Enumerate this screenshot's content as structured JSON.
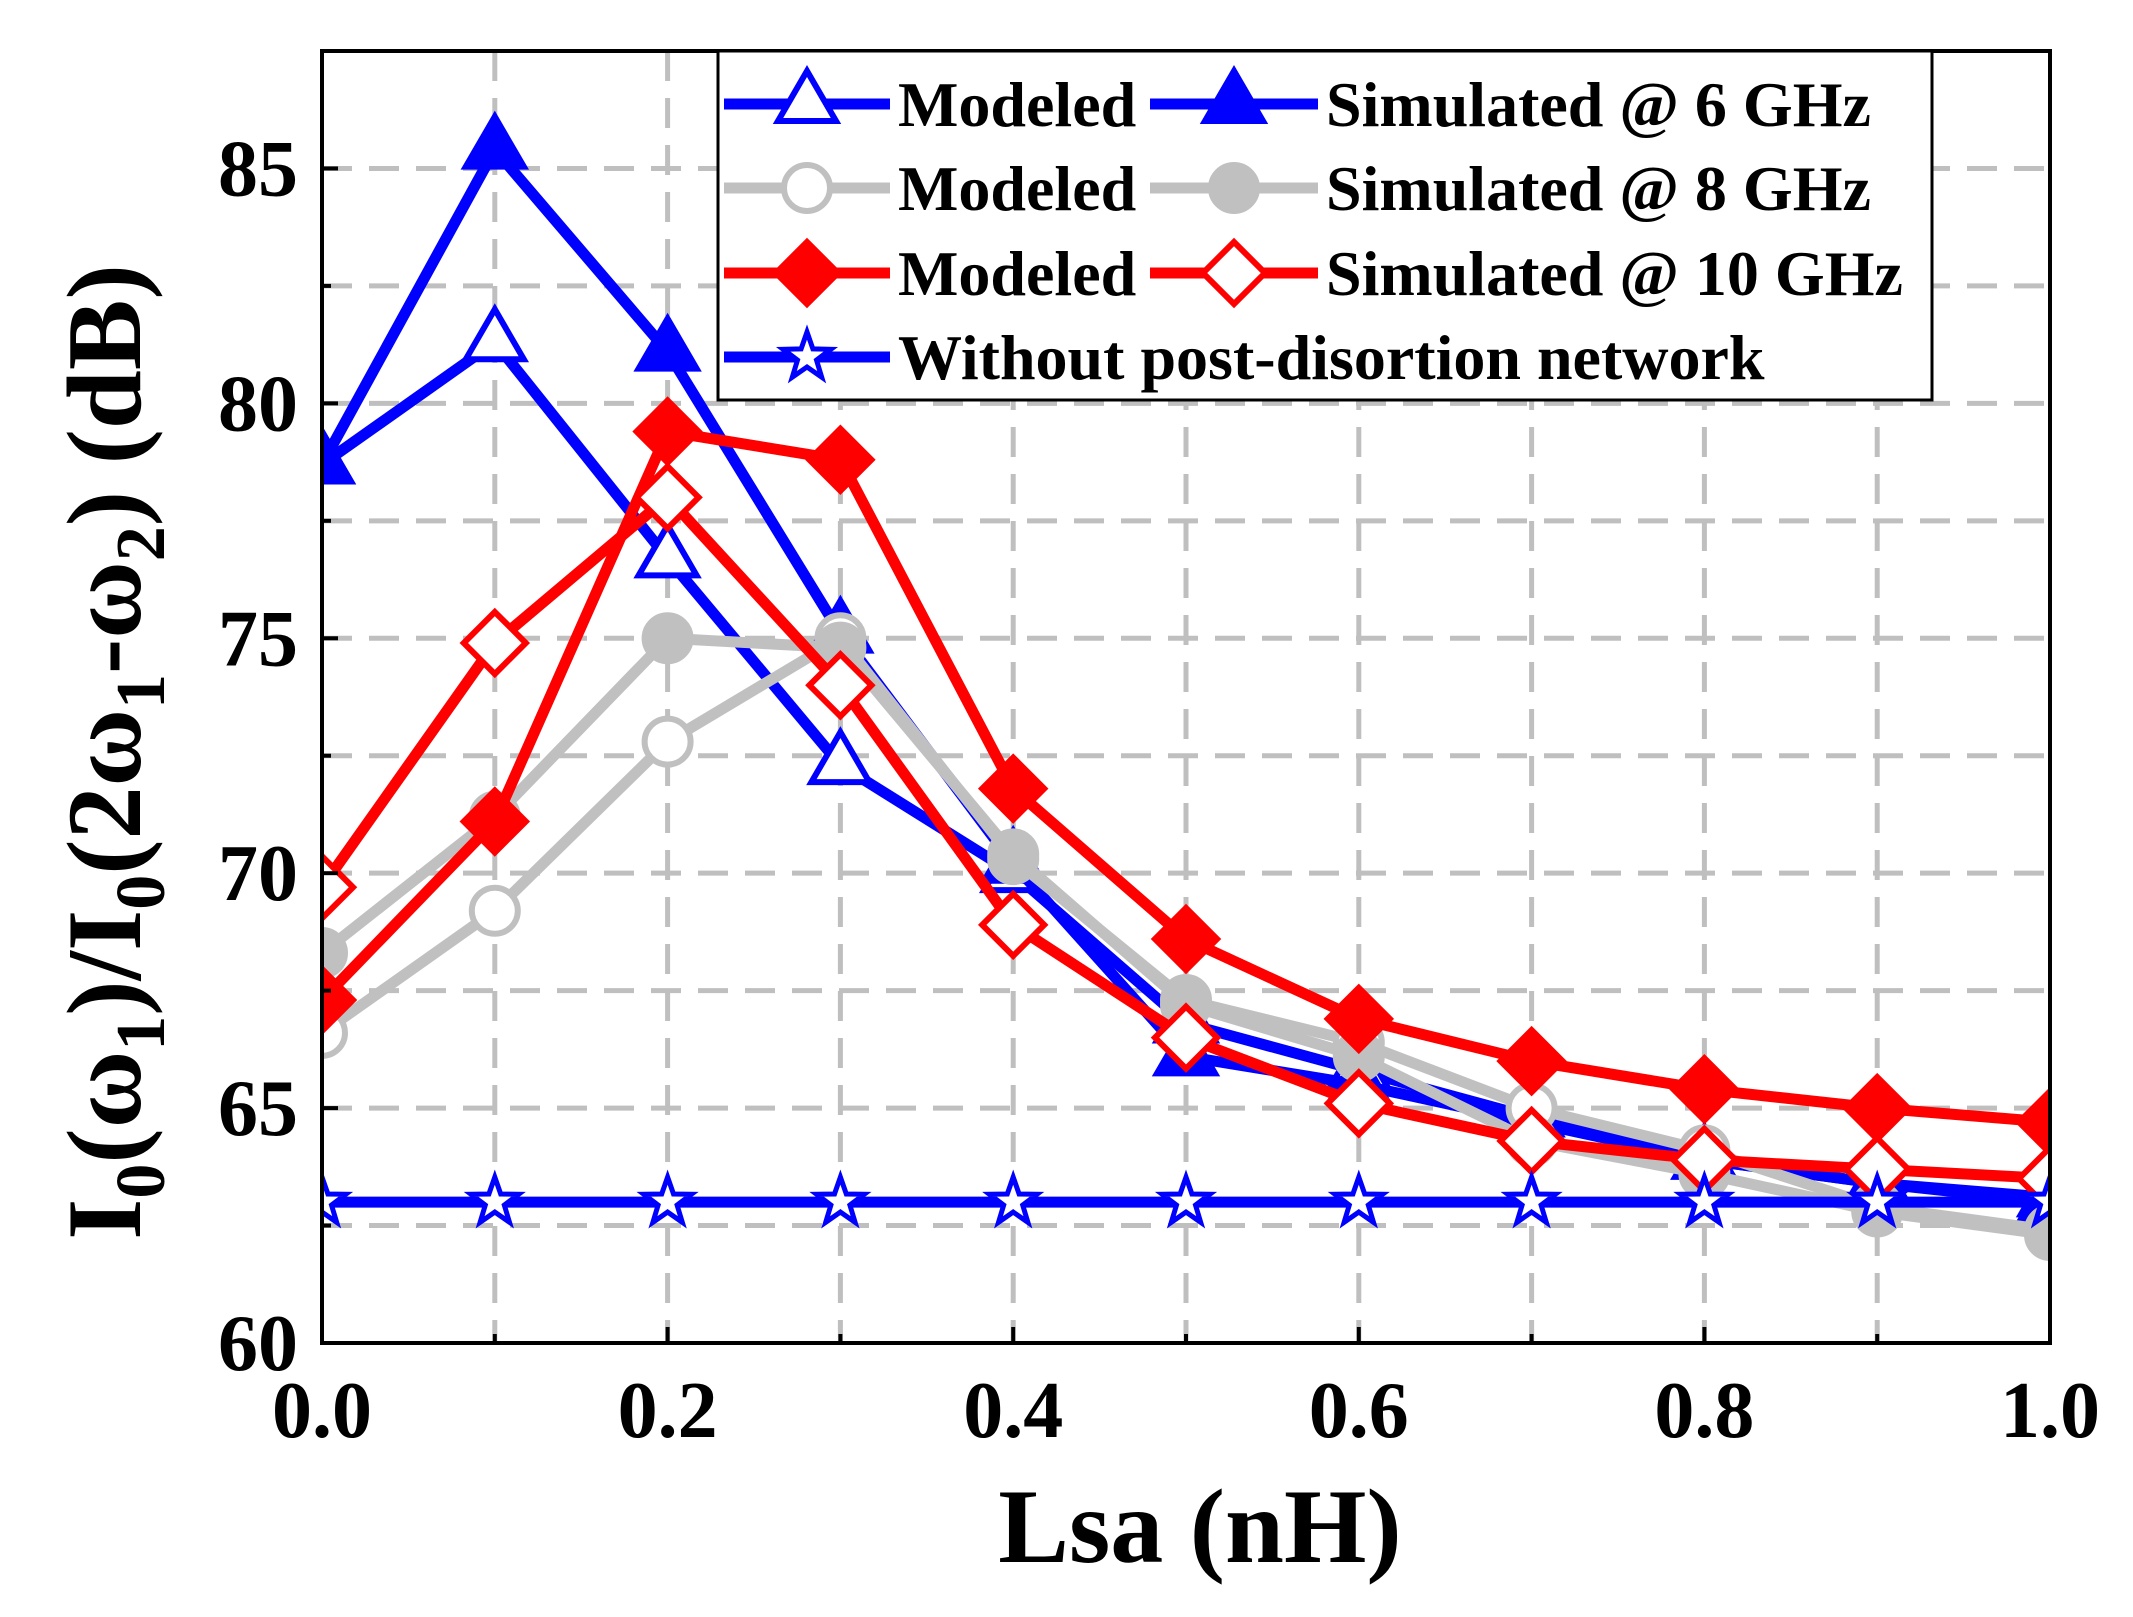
{
  "chart_data": {
    "type": "line",
    "xlabel": "Lsa (nH)",
    "ylabel": [
      "I",
      "0",
      "(ω",
      "1",
      ")/I",
      "0",
      "(2ω",
      "1",
      "-ω",
      "2",
      ") (dB)"
    ],
    "xlim": [
      0,
      1
    ],
    "ylim": [
      60,
      87.5
    ],
    "x_tick_values": [
      0,
      0.2,
      0.4,
      0.6,
      0.8,
      1.0
    ],
    "x_tick_labels": [
      "0.0",
      "0.2",
      "0.4",
      "0.6",
      "0.8",
      "1.0"
    ],
    "y_tick_values": [
      60,
      65,
      70,
      75,
      80,
      85
    ],
    "y_tick_labels": [
      "60",
      "65",
      "70",
      "75",
      "80",
      "85"
    ],
    "grid": {
      "on": true,
      "x_step": 0.1,
      "y_step": 2.5,
      "color": "#BFBFBF"
    },
    "legend_position": "top-right",
    "x": [
      0,
      0.1,
      0.2,
      0.3,
      0.4,
      0.5,
      0.6,
      0.7,
      0.8,
      0.9,
      1.0
    ],
    "series": [
      {
        "name": "Modeled",
        "color": "#0000FF",
        "marker": "triangle",
        "marker_filled": false,
        "values": [
          78.7,
          81.3,
          76.7,
          72.3,
          70.0,
          66.8,
          65.8,
          64.8,
          63.9,
          63.4,
          63.0
        ]
      },
      {
        "name": "Simulated @ 6 GHz",
        "color": "#0000FF",
        "marker": "triangle",
        "marker_filled": true,
        "values": [
          78.7,
          85.4,
          81.1,
          75.1,
          70.2,
          66.1,
          65.5,
          64.7,
          63.9,
          63.4,
          63.1
        ]
      },
      {
        "name": "Modeled",
        "color": "#C0C0C0",
        "marker": "circle",
        "marker_filled": false,
        "values": [
          66.6,
          69.2,
          72.8,
          75.0,
          70.3,
          67.3,
          66.4,
          65.0,
          64.1,
          62.9,
          62.4
        ]
      },
      {
        "name": "Simulated @ 8 GHz",
        "color": "#C0C0C0",
        "marker": "circle",
        "marker_filled": true,
        "values": [
          68.3,
          71.2,
          75.0,
          74.8,
          70.4,
          67.2,
          66.1,
          64.3,
          63.6,
          62.8,
          62.3
        ]
      },
      {
        "name": "Modeled",
        "color": "#FF0000",
        "marker": "diamond",
        "marker_filled": true,
        "values": [
          67.3,
          71.1,
          79.4,
          78.8,
          71.8,
          68.6,
          66.9,
          66.0,
          65.4,
          65.0,
          64.7
        ]
      },
      {
        "name": "Simulated @ 10 GHz",
        "color": "#FF0000",
        "marker": "diamond",
        "marker_filled": false,
        "values": [
          69.7,
          74.9,
          78.0,
          74.0,
          68.9,
          66.5,
          65.1,
          64.3,
          63.9,
          63.7,
          63.5
        ]
      },
      {
        "name": "Without post-disortion network",
        "color": "#0000FF",
        "marker": "star",
        "marker_filled": false,
        "values": [
          63.0,
          63.0,
          63.0,
          63.0,
          63.0,
          63.0,
          63.0,
          63.0,
          63.0,
          63.0,
          63.0
        ]
      }
    ]
  }
}
